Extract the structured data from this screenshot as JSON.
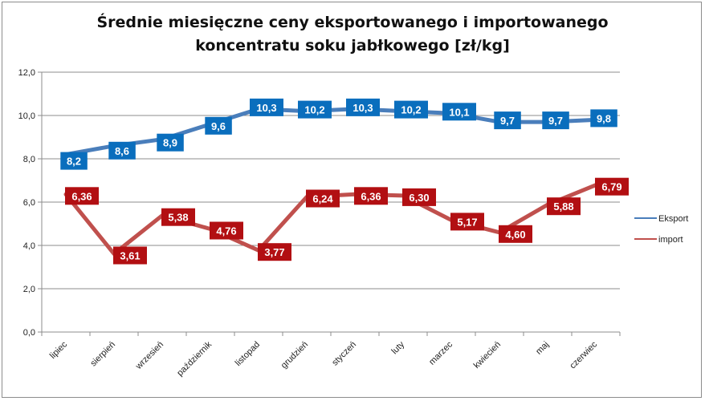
{
  "chart_data": {
    "type": "line",
    "title_line1": "Średnie miesięczne ceny eksportowanego i importowanego",
    "title_line2": "koncentratu soku jabłkowego [zł/kg]",
    "xlabel": "",
    "ylabel": "",
    "categories": [
      "lipiec",
      "sierpień",
      "wrzesień",
      "październik",
      "listopad",
      "grudzień",
      "styczeń",
      "luty",
      "marzec",
      "kwiecień",
      "maj",
      "czerwiec"
    ],
    "ylim": [
      0,
      12
    ],
    "yticks": [
      "0,0",
      "2,0",
      "4,0",
      "6,0",
      "8,0",
      "10,0",
      "12,0"
    ],
    "grid": true,
    "legend_position": "right",
    "series": [
      {
        "name": "Eksport",
        "color": "#4a7ebb",
        "label_color": "#0a6ebd",
        "values": [
          8.2,
          8.6,
          8.9,
          9.6,
          10.3,
          10.2,
          10.3,
          10.2,
          10.1,
          9.7,
          9.7,
          9.8
        ],
        "labels": [
          "8,2",
          "8,6",
          "8,9",
          "9,6",
          "10,3",
          "10,2",
          "10,3",
          "10,2",
          "10,1",
          "9,7",
          "9,7",
          "9,8"
        ]
      },
      {
        "name": "import",
        "color": "#c0504d",
        "label_color": "#b20f12",
        "values": [
          6.36,
          3.61,
          5.38,
          4.76,
          3.77,
          6.24,
          6.36,
          6.3,
          5.17,
          4.6,
          5.88,
          6.79
        ],
        "labels": [
          "6,36",
          "3,61",
          "5,38",
          "4,76",
          "3,77",
          "6,24",
          "6,36",
          "6,30",
          "5,17",
          "4,60",
          "5,88",
          "6,79"
        ]
      }
    ]
  }
}
